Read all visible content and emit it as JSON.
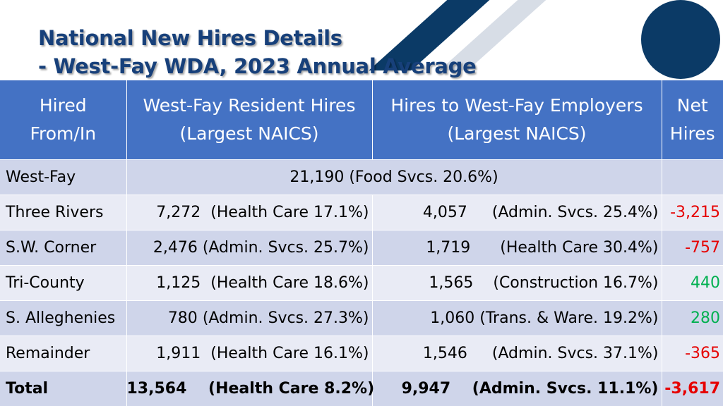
{
  "title": {
    "line1": "National New Hires Details",
    "line2": "- West-Fay WDA, 2023 Annual Average"
  },
  "table": {
    "headers": {
      "col1": [
        "Hired",
        "From/In"
      ],
      "col2": [
        "West-Fay Resident Hires",
        "(Largest NAICS)"
      ],
      "col3": [
        "Hires to West-Fay Employers",
        "(Largest NAICS)"
      ],
      "col4": [
        "Net",
        "Hires"
      ]
    },
    "west_fay_row": {
      "region": "West-Fay",
      "merged": "21,190 (Food Svcs. 20.6%)"
    },
    "rows": [
      {
        "region": "Three Rivers",
        "res_num": "7,272",
        "res_naics": "(Health Care 17.1%)",
        "emp_num": "4,057",
        "emp_naics": "(Admin. Svcs. 25.4%)",
        "net": "-3,215",
        "sign": "neg"
      },
      {
        "region": "S.W. Corner",
        "res_num": "2,476",
        "res_naics": "(Admin. Svcs. 25.7%)",
        "emp_num": "1,719",
        "emp_naics": "(Health Care 30.4%)",
        "net": "-757",
        "sign": "neg"
      },
      {
        "region": "Tri-County",
        "res_num": "1,125",
        "res_naics": "(Health Care 18.6%)",
        "emp_num": "1,565",
        "emp_naics": "(Construction 16.7%)",
        "net": "440",
        "sign": "pos"
      },
      {
        "region": "S. Alleghenies",
        "res_num": "780",
        "res_naics": "(Admin. Svcs. 27.3%)",
        "emp_num": "1,060",
        "emp_naics": "(Trans. & Ware. 19.2%)",
        "net": "280",
        "sign": "pos"
      },
      {
        "region": "Remainder",
        "res_num": "1,911",
        "res_naics": "(Health Care 16.1%)",
        "emp_num": "1,546",
        "emp_naics": "(Admin. Svcs. 37.1%)",
        "net": "-365",
        "sign": "neg"
      }
    ],
    "total": {
      "region": "Total",
      "res_num": "13,564",
      "res_naics": "(Health Care 8.2%)",
      "emp_num": "9,947",
      "emp_naics": "(Admin. Svcs. 11.1%)",
      "net": "-3,617",
      "sign": "neg"
    }
  },
  "colors": {
    "header_bg": "#4472c4",
    "title": "#17407a",
    "negative": "#e60000",
    "positive": "#00b050",
    "row_dark": "#cfd5ea",
    "row_light": "#e9ebf5"
  }
}
